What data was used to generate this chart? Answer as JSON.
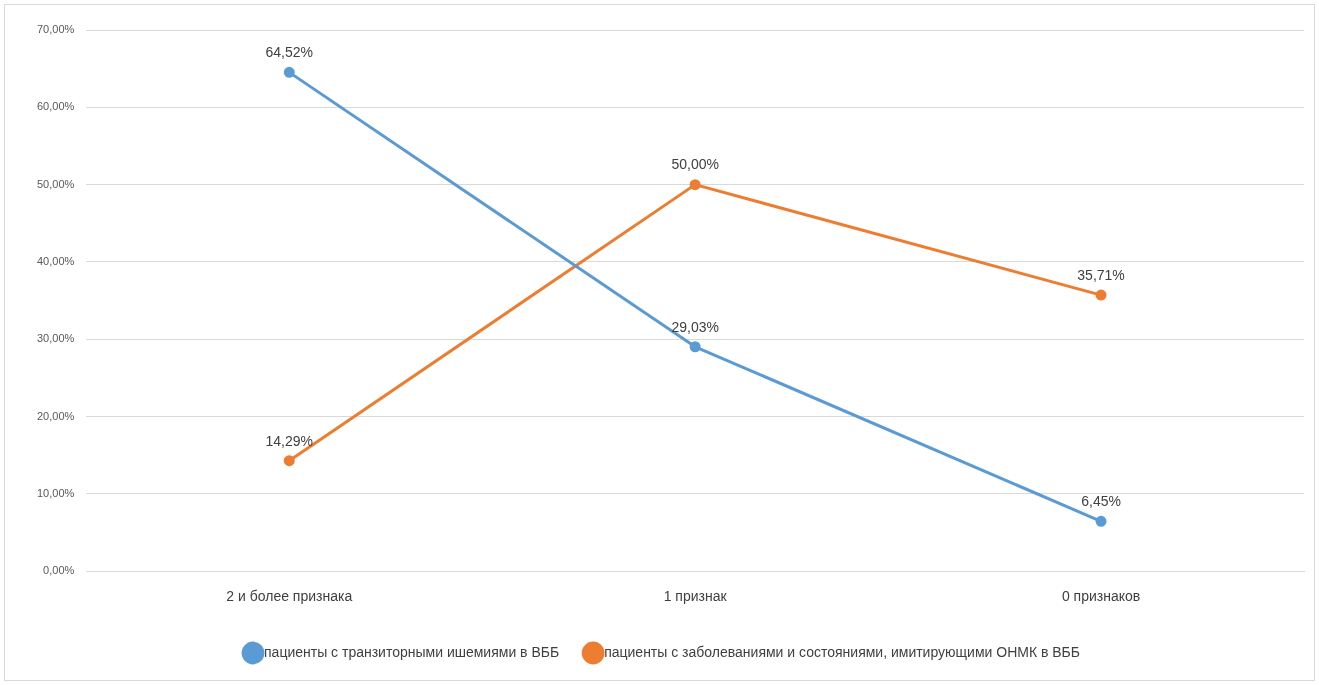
{
  "chart_data": {
    "type": "line",
    "categories": [
      "2 и более признака",
      "1 признак",
      "0 признаков"
    ],
    "series": [
      {
        "name": "пациенты с транзиторными ишемиями в ВББ",
        "color": "#5b9bd5",
        "values": [
          64.52,
          29.03,
          6.45
        ],
        "value_labels": [
          "64,52%",
          "29,03%",
          "6,45%"
        ]
      },
      {
        "name": "пациенты с заболеваниями и состояниями, имитирующими ОНМК в ВББ",
        "color": "#ed7d31",
        "values": [
          14.29,
          50.0,
          35.71
        ],
        "value_labels": [
          "14,29%",
          "50,00%",
          "35,71%"
        ]
      }
    ],
    "ylim": [
      0,
      70
    ],
    "yticks": [
      {
        "value": 0,
        "label": "0,00%"
      },
      {
        "value": 10,
        "label": "10,00%"
      },
      {
        "value": 20,
        "label": "20,00%"
      },
      {
        "value": 30,
        "label": "30,00%"
      },
      {
        "value": 40,
        "label": "40,00%"
      },
      {
        "value": 50,
        "label": "50,00%"
      },
      {
        "value": 60,
        "label": "60,00%"
      },
      {
        "value": 70,
        "label": "70,00%"
      }
    ],
    "grid": "y",
    "legend": "bottom",
    "marker": "circle",
    "line_style": "solid"
  }
}
